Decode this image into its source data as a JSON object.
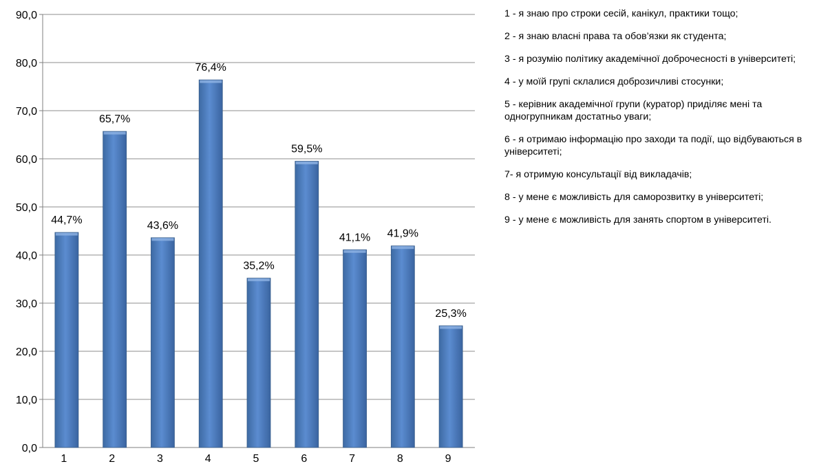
{
  "chart_data": {
    "type": "bar",
    "categories": [
      "1",
      "2",
      "3",
      "4",
      "5",
      "6",
      "7",
      "8",
      "9"
    ],
    "values": [
      44.7,
      65.7,
      43.6,
      76.4,
      35.2,
      59.5,
      41.1,
      41.9,
      25.3
    ],
    "data_labels": [
      "44,7%",
      "65,7%",
      "43,6%",
      "76,4%",
      "35,2%",
      "59,5%",
      "41,1%",
      "41,9%",
      "25,3%"
    ],
    "y_ticks": [
      0,
      10,
      20,
      30,
      40,
      50,
      60,
      70,
      80,
      90
    ],
    "y_tick_labels": [
      "0,0",
      "10,0",
      "20,0",
      "30,0",
      "40,0",
      "50,0",
      "60,0",
      "70,0",
      "80,0",
      "90,0"
    ],
    "ylim": [
      0,
      90
    ],
    "grid": true,
    "legend_position": "right",
    "bar_color": "#4f81bd",
    "bar_edge_color": "#385d8a",
    "grid_color": "#8c8c8c",
    "title": "",
    "xlabel": "",
    "ylabel": ""
  },
  "legend_items": [
    "1 - я знаю про строки сесій, канікул, практики тощо;",
    "2 - я знаю власні права та обов’язки як студента;",
    "3 - я розумію політику академічної доброчесності в університеті;",
    "4 - у моїй групі склалися доброзичливі стосунки;",
    "5 - керівник академічної групи (куратор) приділяє мені та одногрупникам достатньо уваги;",
    "6 - я отримаю інформацію про заходи та події, що відбуваються в університеті;",
    "7- я отримую консультації від викладачів;",
    "8 - у мене є можливість для саморозвитку в університеті;",
    "9 - у мене є можливість для занять спортом в університеті."
  ]
}
